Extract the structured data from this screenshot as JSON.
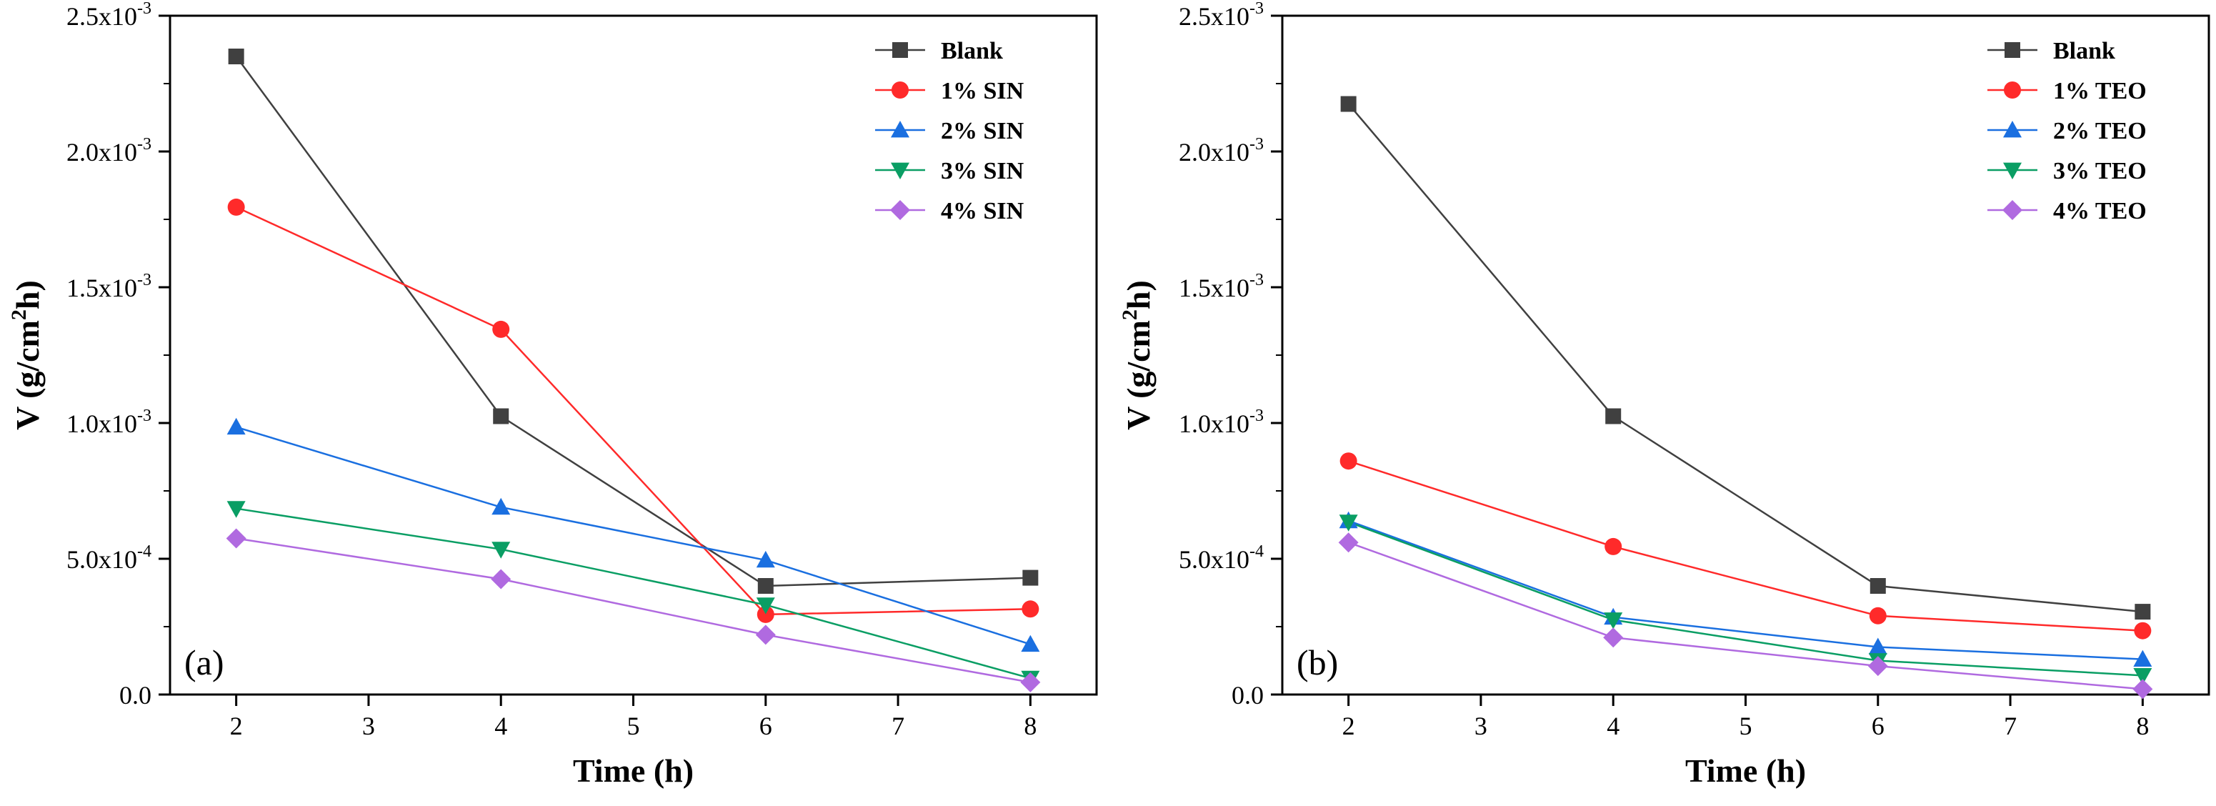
{
  "chart_data": [
    {
      "type": "line",
      "panel_label": "(a)",
      "xlabel": "Time (h)",
      "ylabel_main": "V (g/cm",
      "ylabel_sup": "2",
      "ylabel_end": "h)",
      "xlim": [
        1.5,
        8.5
      ],
      "ylim": [
        0,
        0.0025
      ],
      "x_ticks": [
        {
          "value": 2,
          "label": "2"
        },
        {
          "value": 3,
          "label": "3"
        },
        {
          "value": 4,
          "label": "4"
        },
        {
          "value": 5,
          "label": "5"
        },
        {
          "value": 6,
          "label": "6"
        },
        {
          "value": 7,
          "label": "7"
        },
        {
          "value": 8,
          "label": "8"
        }
      ],
      "y_ticks": [
        {
          "value": 0,
          "mant": "0.0",
          "exp": ""
        },
        {
          "value": 0.0005,
          "mant": "5.0x10",
          "exp": "-4"
        },
        {
          "value": 0.001,
          "mant": "1.0x10",
          "exp": "-3"
        },
        {
          "value": 0.0015,
          "mant": "1.5x10",
          "exp": "-3"
        },
        {
          "value": 0.002,
          "mant": "2.0x10",
          "exp": "-3"
        },
        {
          "value": 0.0025,
          "mant": "2.5x10",
          "exp": "-3"
        }
      ],
      "legend_position": "top-right",
      "x": [
        2,
        4,
        6,
        8
      ],
      "series": [
        {
          "name": "Blank",
          "color": "#404040",
          "marker": "square",
          "values": [
            0.00235,
            0.001025,
            0.0004,
            0.00043
          ]
        },
        {
          "name": "1% SIN",
          "color": "#ff2a2a",
          "marker": "circle",
          "values": [
            0.001795,
            0.001345,
            0.000295,
            0.000315
          ]
        },
        {
          "name": "2% SIN",
          "color": "#1a6fe0",
          "marker": "triangle-up",
          "values": [
            0.000985,
            0.00069,
            0.000495,
            0.000185
          ]
        },
        {
          "name": "3% SIN",
          "color": "#0a9e64",
          "marker": "triangle-down",
          "values": [
            0.000685,
            0.000535,
            0.00033,
            6e-05
          ]
        },
        {
          "name": "4% SIN",
          "color": "#b06ae0",
          "marker": "diamond",
          "values": [
            0.000575,
            0.000425,
            0.00022,
            4.5e-05
          ]
        }
      ]
    },
    {
      "type": "line",
      "panel_label": "(b)",
      "xlabel": "Time (h)",
      "ylabel_main": "V (g/cm",
      "ylabel_sup": "2",
      "ylabel_end": "h)",
      "xlim": [
        1.5,
        8.5
      ],
      "ylim": [
        0,
        0.0025
      ],
      "x_ticks": [
        {
          "value": 2,
          "label": "2"
        },
        {
          "value": 3,
          "label": "3"
        },
        {
          "value": 4,
          "label": "4"
        },
        {
          "value": 5,
          "label": "5"
        },
        {
          "value": 6,
          "label": "6"
        },
        {
          "value": 7,
          "label": "7"
        },
        {
          "value": 8,
          "label": "8"
        }
      ],
      "y_ticks": [
        {
          "value": 0,
          "mant": "0.0",
          "exp": ""
        },
        {
          "value": 0.0005,
          "mant": "5.0x10",
          "exp": "-4"
        },
        {
          "value": 0.001,
          "mant": "1.0x10",
          "exp": "-3"
        },
        {
          "value": 0.0015,
          "mant": "1.5x10",
          "exp": "-3"
        },
        {
          "value": 0.002,
          "mant": "2.0x10",
          "exp": "-3"
        },
        {
          "value": 0.0025,
          "mant": "2.5x10",
          "exp": "-3"
        }
      ],
      "legend_position": "top-right",
      "x": [
        2,
        4,
        6,
        8
      ],
      "series": [
        {
          "name": "Blank",
          "color": "#404040",
          "marker": "square",
          "values": [
            0.002175,
            0.001025,
            0.0004,
            0.000305
          ]
        },
        {
          "name": "1% TEO",
          "color": "#ff2a2a",
          "marker": "circle",
          "values": [
            0.00086,
            0.000545,
            0.00029,
            0.000235
          ]
        },
        {
          "name": "2% TEO",
          "color": "#1a6fe0",
          "marker": "triangle-up",
          "values": [
            0.00064,
            0.000285,
            0.000175,
            0.00013
          ]
        },
        {
          "name": "3% TEO",
          "color": "#0a9e64",
          "marker": "triangle-down",
          "values": [
            0.000635,
            0.000275,
            0.000125,
            7e-05
          ]
        },
        {
          "name": "4% TEO",
          "color": "#b06ae0",
          "marker": "diamond",
          "values": [
            0.00056,
            0.00021,
            0.000105,
            2e-05
          ]
        }
      ]
    }
  ]
}
